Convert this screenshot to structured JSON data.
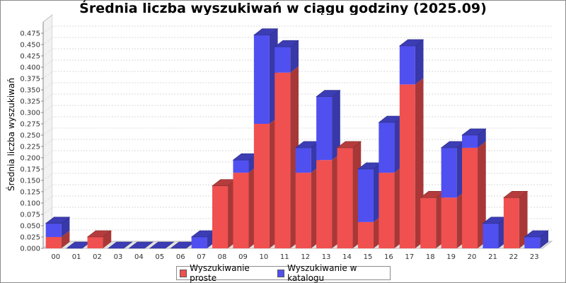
{
  "chart_data": {
    "type": "bar",
    "stacked": true,
    "style": "3d",
    "title": "Średnia liczba wyszukiwań w ciągu godziny (2025.09)",
    "xlabel": "",
    "ylabel": "Średnia liczba wyszukiwań",
    "ylim": [
      0,
      0.5
    ],
    "yticks": [
      "0.000",
      "0.025",
      "0.050",
      "0.075",
      "0.100",
      "0.125",
      "0.150",
      "0.175",
      "0.200",
      "0.225",
      "0.250",
      "0.275",
      "0.300",
      "0.325",
      "0.350",
      "0.375",
      "0.400",
      "0.425",
      "0.450",
      "0.475"
    ],
    "grid": true,
    "legend_position": "bottom",
    "categories": [
      "00",
      "01",
      "02",
      "03",
      "04",
      "05",
      "06",
      "07",
      "08",
      "09",
      "10",
      "11",
      "12",
      "13",
      "14",
      "15",
      "16",
      "17",
      "18",
      "19",
      "20",
      "21",
      "22",
      "23"
    ],
    "series": [
      {
        "name": "Wyszukiwanie proste",
        "color": "#f05050",
        "values": [
          0.025,
          0,
          0.025,
          0,
          0,
          0,
          0,
          0,
          0.138,
          0.167,
          0.275,
          0.388,
          0.167,
          0.195,
          0.222,
          0.058,
          0.167,
          0.362,
          0.112,
          0.112,
          0.222,
          0,
          0.112,
          0
        ]
      },
      {
        "name": "Wyszukiwanie w katalogu",
        "color": "#5050f0",
        "values": [
          0.03,
          0,
          0,
          0,
          0,
          0,
          0,
          0.025,
          0,
          0.028,
          0.196,
          0.057,
          0.055,
          0.14,
          0,
          0.117,
          0.111,
          0.085,
          0,
          0.11,
          0.028,
          0.055,
          0,
          0.025
        ]
      }
    ]
  }
}
